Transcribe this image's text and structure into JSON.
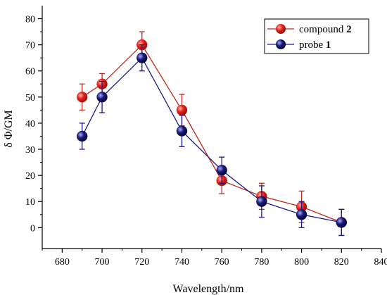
{
  "chart_data": {
    "type": "line",
    "xlabel": "Wavelength/nm",
    "ylabel": "δ Φ/GM",
    "xlim": [
      670,
      840
    ],
    "ylim": [
      -8,
      85
    ],
    "x_ticks": [
      680,
      700,
      720,
      740,
      760,
      780,
      800,
      820,
      840
    ],
    "y_ticks": [
      0,
      10,
      20,
      30,
      40,
      50,
      60,
      70,
      80
    ],
    "grid": false,
    "legend_position": "top-right",
    "series": [
      {
        "name_text": "compound ",
        "name_num": "2",
        "color": "#c0281b",
        "marker_color": "#e8231a",
        "x": [
          690,
          700,
          720,
          740,
          760,
          780,
          800,
          820
        ],
        "y": [
          50,
          55,
          70,
          45,
          18,
          12,
          8,
          2
        ],
        "err": [
          5,
          4,
          5,
          6,
          5,
          5,
          6,
          5
        ]
      },
      {
        "name_text": "probe ",
        "name_num": "1",
        "color": "#1a1a8c",
        "marker_color": "#1b1b7a",
        "x": [
          690,
          700,
          720,
          740,
          760,
          780,
          800,
          820
        ],
        "y": [
          35,
          50,
          65,
          37,
          22,
          10,
          5,
          2
        ],
        "err": [
          5,
          6,
          5,
          6,
          5,
          6,
          5,
          5
        ]
      }
    ]
  }
}
